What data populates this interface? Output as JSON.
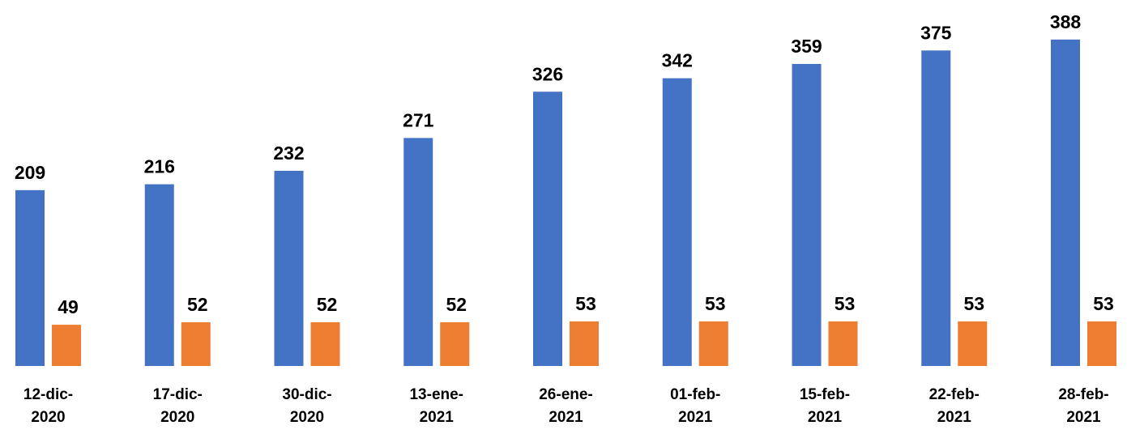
{
  "chart_data": {
    "type": "bar",
    "categories": [
      "12-dic-2020",
      "17-dic-2020",
      "30-dic-2020",
      "13-ene-2021",
      "26-ene-2021",
      "01-feb-2021",
      "15-feb-2021",
      "22-feb-2021",
      "28-feb-2021"
    ],
    "series": [
      {
        "color": "#4472c4",
        "values": [
          209,
          216,
          232,
          271,
          326,
          342,
          359,
          375,
          388
        ]
      },
      {
        "color": "#ed7d31",
        "values": [
          49,
          52,
          52,
          52,
          53,
          53,
          53,
          53,
          53
        ]
      }
    ],
    "ylim": [
      0,
      435
    ]
  }
}
